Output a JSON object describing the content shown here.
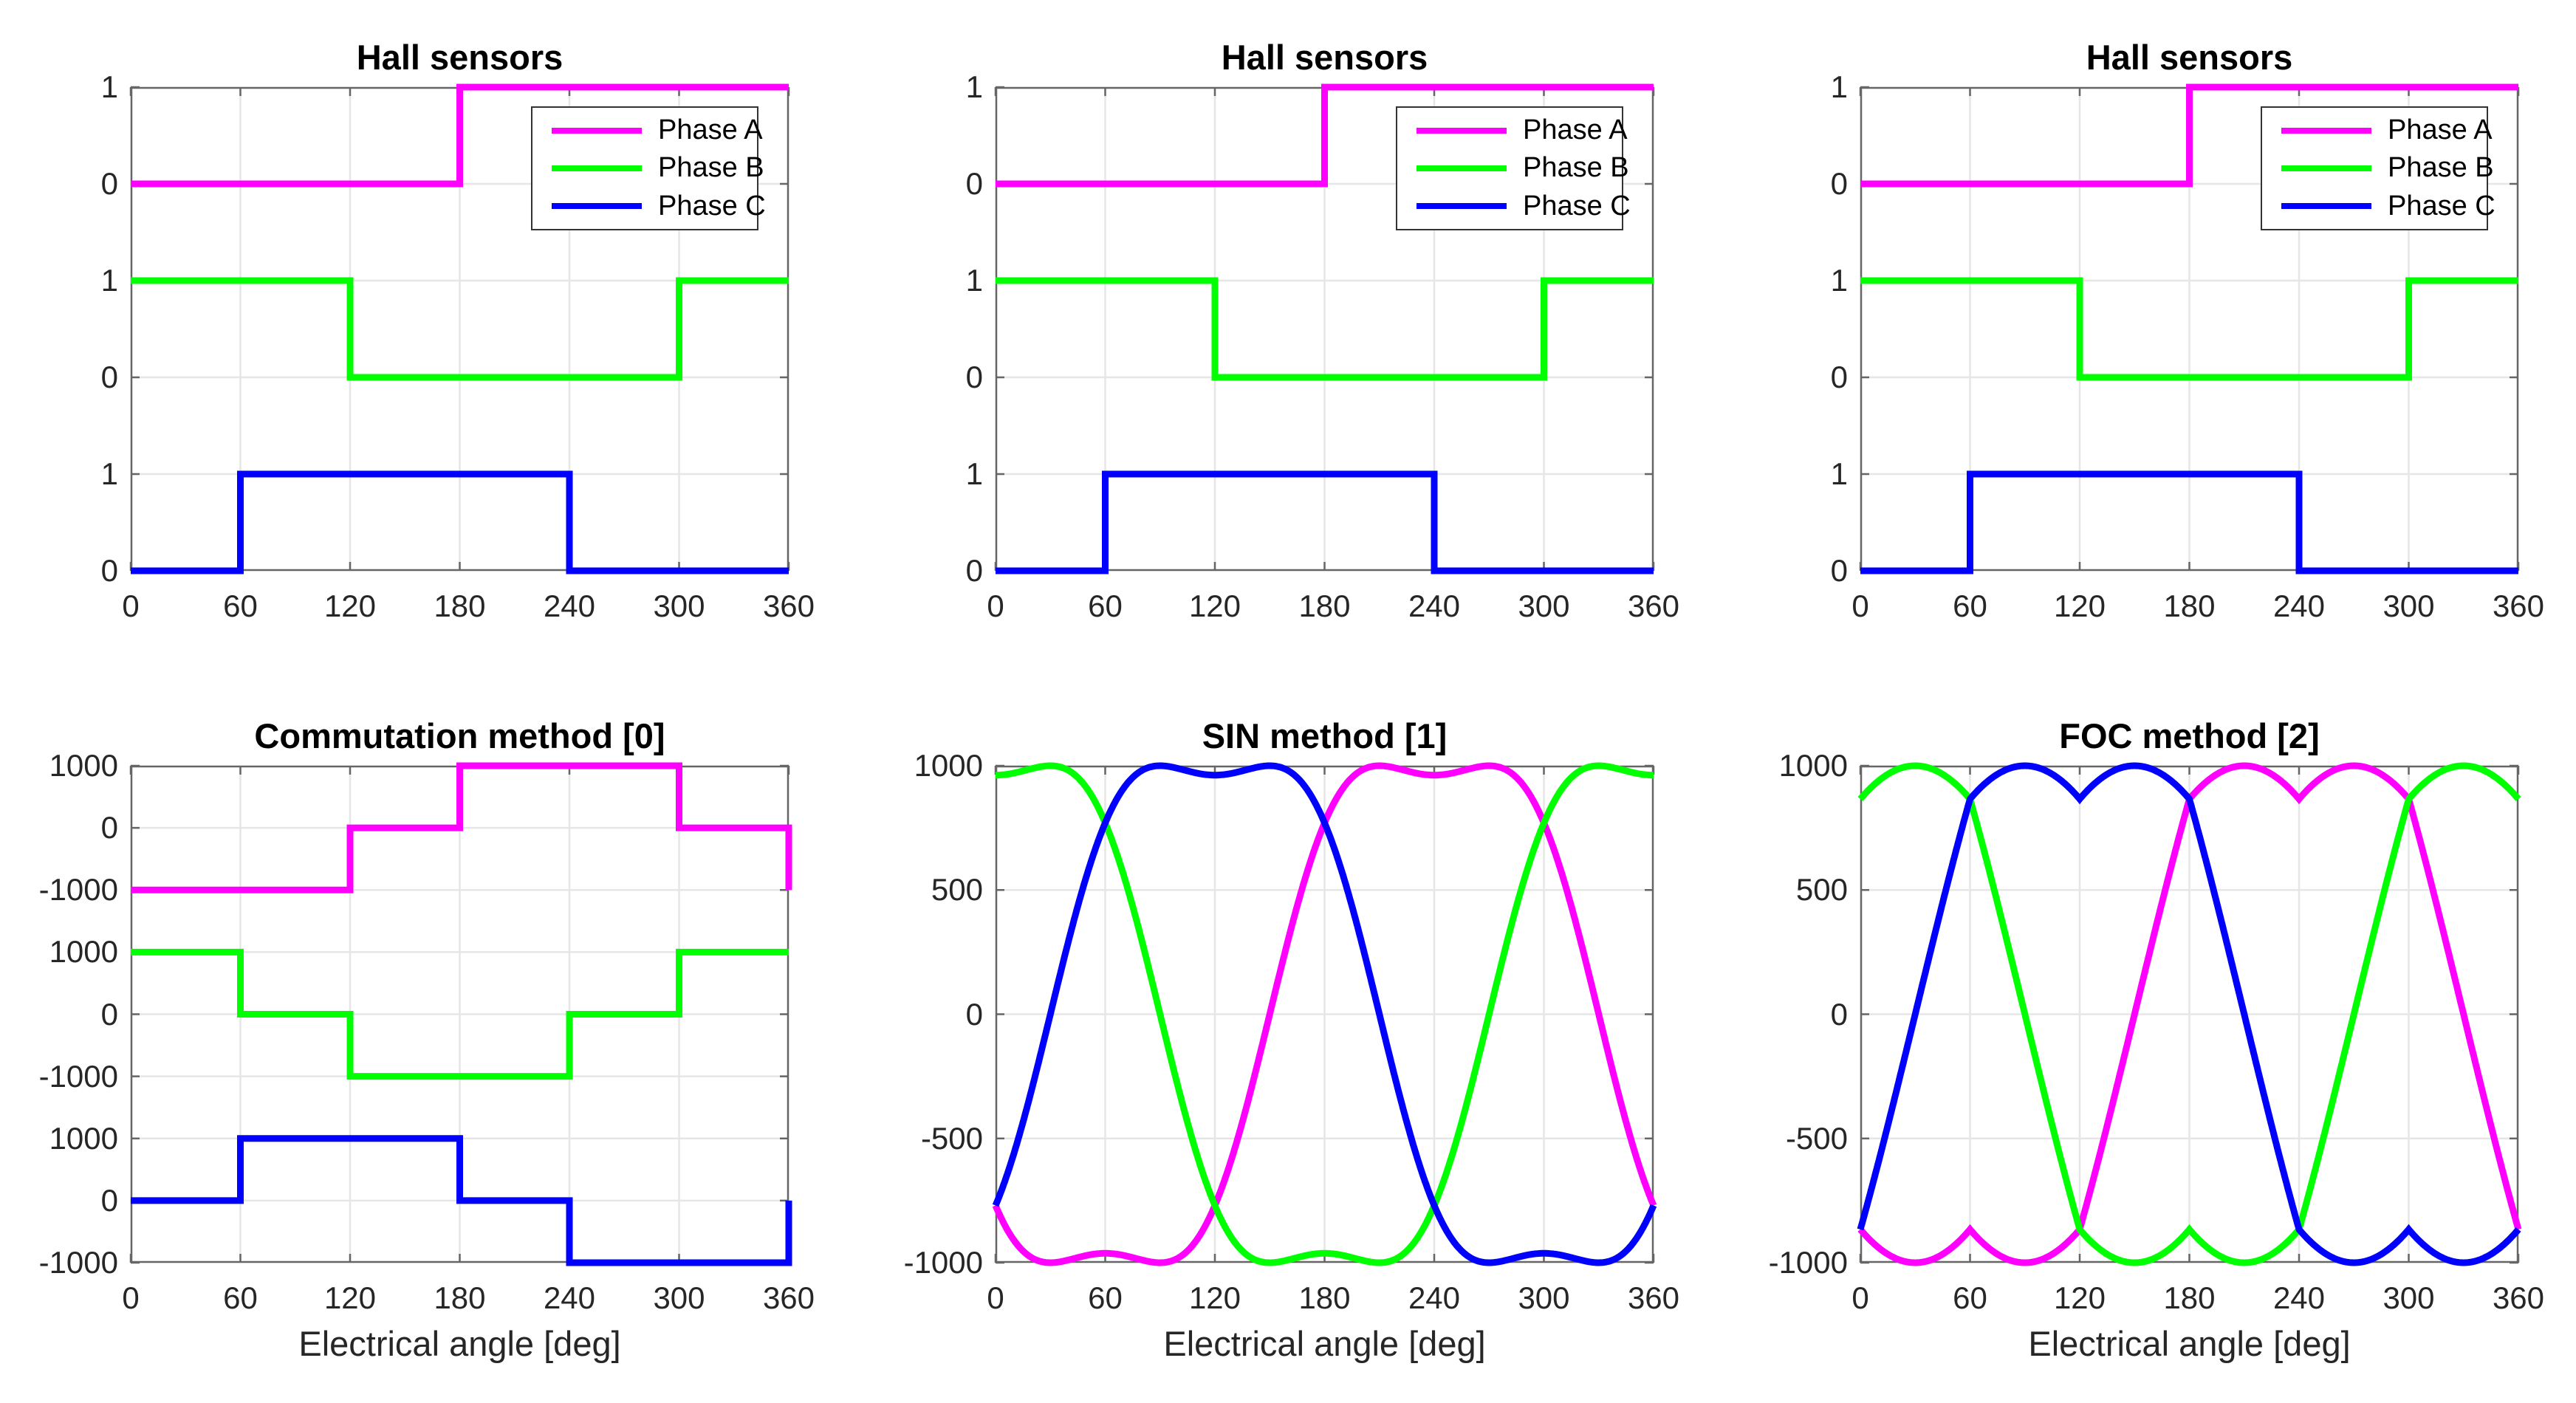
{
  "figure": {
    "background": "#ffffff",
    "axes_color": "#666666",
    "grid_color": "#e6e6e6",
    "tick_label_color": "#262626",
    "title_color": "#000000",
    "phase_colors": {
      "phase_a": "#ff00ff",
      "phase_b": "#00ff00",
      "phase_c": "#0000ff"
    }
  },
  "chart_data": {
    "layout": {
      "rows": 2,
      "cols": 3,
      "grid": true,
      "xlabel_bottom_row_only": true
    },
    "charts": {
      "hall": {
        "type": "line",
        "title": "Hall sensors",
        "xlabel": "",
        "x_range": [
          0,
          360
        ],
        "x_ticks": [
          0,
          60,
          120,
          180,
          240,
          300,
          360
        ],
        "y_axis": {
          "mode": "bands",
          "bands": 3,
          "ticks_per_band": 2,
          "band_range": [
            0,
            1
          ],
          "tick_labels": [
            "1",
            "0",
            "1",
            "0",
            "1",
            "0"
          ]
        },
        "legend": {
          "position": "northeast",
          "entries": [
            {
              "label": "Phase A",
              "color": "#ff00ff"
            },
            {
              "label": "Phase B",
              "color": "#00ff00"
            },
            {
              "label": "Phase C",
              "color": "#0000ff"
            }
          ]
        },
        "series": [
          {
            "name": "Phase A",
            "color": "#ff00ff",
            "band": 0,
            "points": [
              [
                0,
                0
              ],
              [
                180,
                0
              ],
              [
                180,
                1
              ],
              [
                360,
                1
              ]
            ]
          },
          {
            "name": "Phase B",
            "color": "#00ff00",
            "band": 1,
            "points": [
              [
                0,
                1
              ],
              [
                120,
                1
              ],
              [
                120,
                0
              ],
              [
                300,
                0
              ],
              [
                300,
                1
              ],
              [
                360,
                1
              ]
            ]
          },
          {
            "name": "Phase C",
            "color": "#0000ff",
            "band": 2,
            "points": [
              [
                0,
                0
              ],
              [
                60,
                0
              ],
              [
                60,
                1
              ],
              [
                240,
                1
              ],
              [
                240,
                0
              ],
              [
                360,
                0
              ]
            ]
          }
        ]
      },
      "commutation": {
        "type": "line",
        "title": "Commutation method [0]",
        "xlabel": "Electrical angle [deg]",
        "x_range": [
          0,
          360
        ],
        "x_ticks": [
          0,
          60,
          120,
          180,
          240,
          300,
          360
        ],
        "y_axis": {
          "mode": "bands",
          "bands": 3,
          "ticks_per_band": 3,
          "band_range": [
            -1000,
            1000
          ],
          "tick_labels": [
            "1000",
            "0",
            "-1000",
            "1000",
            "0",
            "-1000",
            "1000",
            "0",
            "-1000"
          ]
        },
        "series": [
          {
            "name": "Phase A",
            "color": "#ff00ff",
            "band": 0,
            "points": [
              [
                0,
                -1000
              ],
              [
                120,
                -1000
              ],
              [
                120,
                0
              ],
              [
                180,
                0
              ],
              [
                180,
                1000
              ],
              [
                300,
                1000
              ],
              [
                300,
                0
              ],
              [
                360,
                0
              ],
              [
                360,
                -1000
              ]
            ]
          },
          {
            "name": "Phase B",
            "color": "#00ff00",
            "band": 1,
            "points": [
              [
                0,
                1000
              ],
              [
                60,
                1000
              ],
              [
                60,
                0
              ],
              [
                120,
                0
              ],
              [
                120,
                -1000
              ],
              [
                240,
                -1000
              ],
              [
                240,
                0
              ],
              [
                300,
                0
              ],
              [
                300,
                1000
              ],
              [
                360,
                1000
              ]
            ]
          },
          {
            "name": "Phase C",
            "color": "#0000ff",
            "band": 2,
            "points": [
              [
                0,
                0
              ],
              [
                60,
                0
              ],
              [
                60,
                1000
              ],
              [
                180,
                1000
              ],
              [
                180,
                0
              ],
              [
                240,
                0
              ],
              [
                240,
                -1000
              ],
              [
                360,
                -1000
              ],
              [
                360,
                0
              ]
            ]
          }
        ]
      },
      "sin": {
        "type": "line",
        "title": "SIN method [1]",
        "xlabel": "Electrical angle [deg]",
        "x_range": [
          0,
          360
        ],
        "x_ticks": [
          0,
          60,
          120,
          180,
          240,
          300,
          360
        ],
        "y_axis": {
          "mode": "linear",
          "range": [
            -1000,
            1000
          ],
          "tick_values": [
            1000,
            500,
            0,
            -500,
            -1000
          ],
          "tick_labels": [
            "1000",
            "500",
            "0",
            "-500",
            "-1000"
          ]
        },
        "waveform": {
          "formula": "sine_plus_third_harmonic",
          "amplitude_peak": 1000,
          "third_harmonic_fraction": 0.16667,
          "saddle_dip_value": 962,
          "hump_offset_deg": 30,
          "value_at_0_deg": {
            "phase_a": -770,
            "phase_b": 962,
            "phase_c": -770
          }
        },
        "series": [
          {
            "name": "Phase A",
            "color": "#ff00ff",
            "peak_center_deg": 240
          },
          {
            "name": "Phase B",
            "color": "#00ff00",
            "peak_center_deg": 0
          },
          {
            "name": "Phase C",
            "color": "#0000ff",
            "peak_center_deg": 120
          }
        ]
      },
      "foc": {
        "type": "line",
        "title": "FOC method [2]",
        "xlabel": "Electrical angle [deg]",
        "x_range": [
          0,
          360
        ],
        "x_ticks": [
          0,
          60,
          120,
          180,
          240,
          300,
          360
        ],
        "y_axis": {
          "mode": "linear",
          "range": [
            -1000,
            1000
          ],
          "tick_values": [
            1000,
            500,
            0,
            -500,
            -1000
          ],
          "tick_labels": [
            "1000",
            "500",
            "0",
            "-500",
            "-1000"
          ]
        },
        "waveform": {
          "formula": "svpwm_min_max_injection",
          "amplitude_peak": 1000,
          "saddle_dip_value": 866,
          "hump_offset_deg": 30,
          "value_at_0_deg": {
            "phase_a": -866,
            "phase_b": 866,
            "phase_c": -866
          }
        },
        "series": [
          {
            "name": "Phase A",
            "color": "#ff00ff",
            "peak_center_deg": 240
          },
          {
            "name": "Phase B",
            "color": "#00ff00",
            "peak_center_deg": 0
          },
          {
            "name": "Phase C",
            "color": "#0000ff",
            "peak_center_deg": 120
          }
        ]
      }
    },
    "plots": [
      {
        "chart": "hall",
        "row": 0,
        "col": 0
      },
      {
        "chart": "hall",
        "row": 0,
        "col": 1
      },
      {
        "chart": "hall",
        "row": 0,
        "col": 2
      },
      {
        "chart": "commutation",
        "row": 1,
        "col": 0
      },
      {
        "chart": "sin",
        "row": 1,
        "col": 1
      },
      {
        "chart": "foc",
        "row": 1,
        "col": 2
      }
    ]
  }
}
